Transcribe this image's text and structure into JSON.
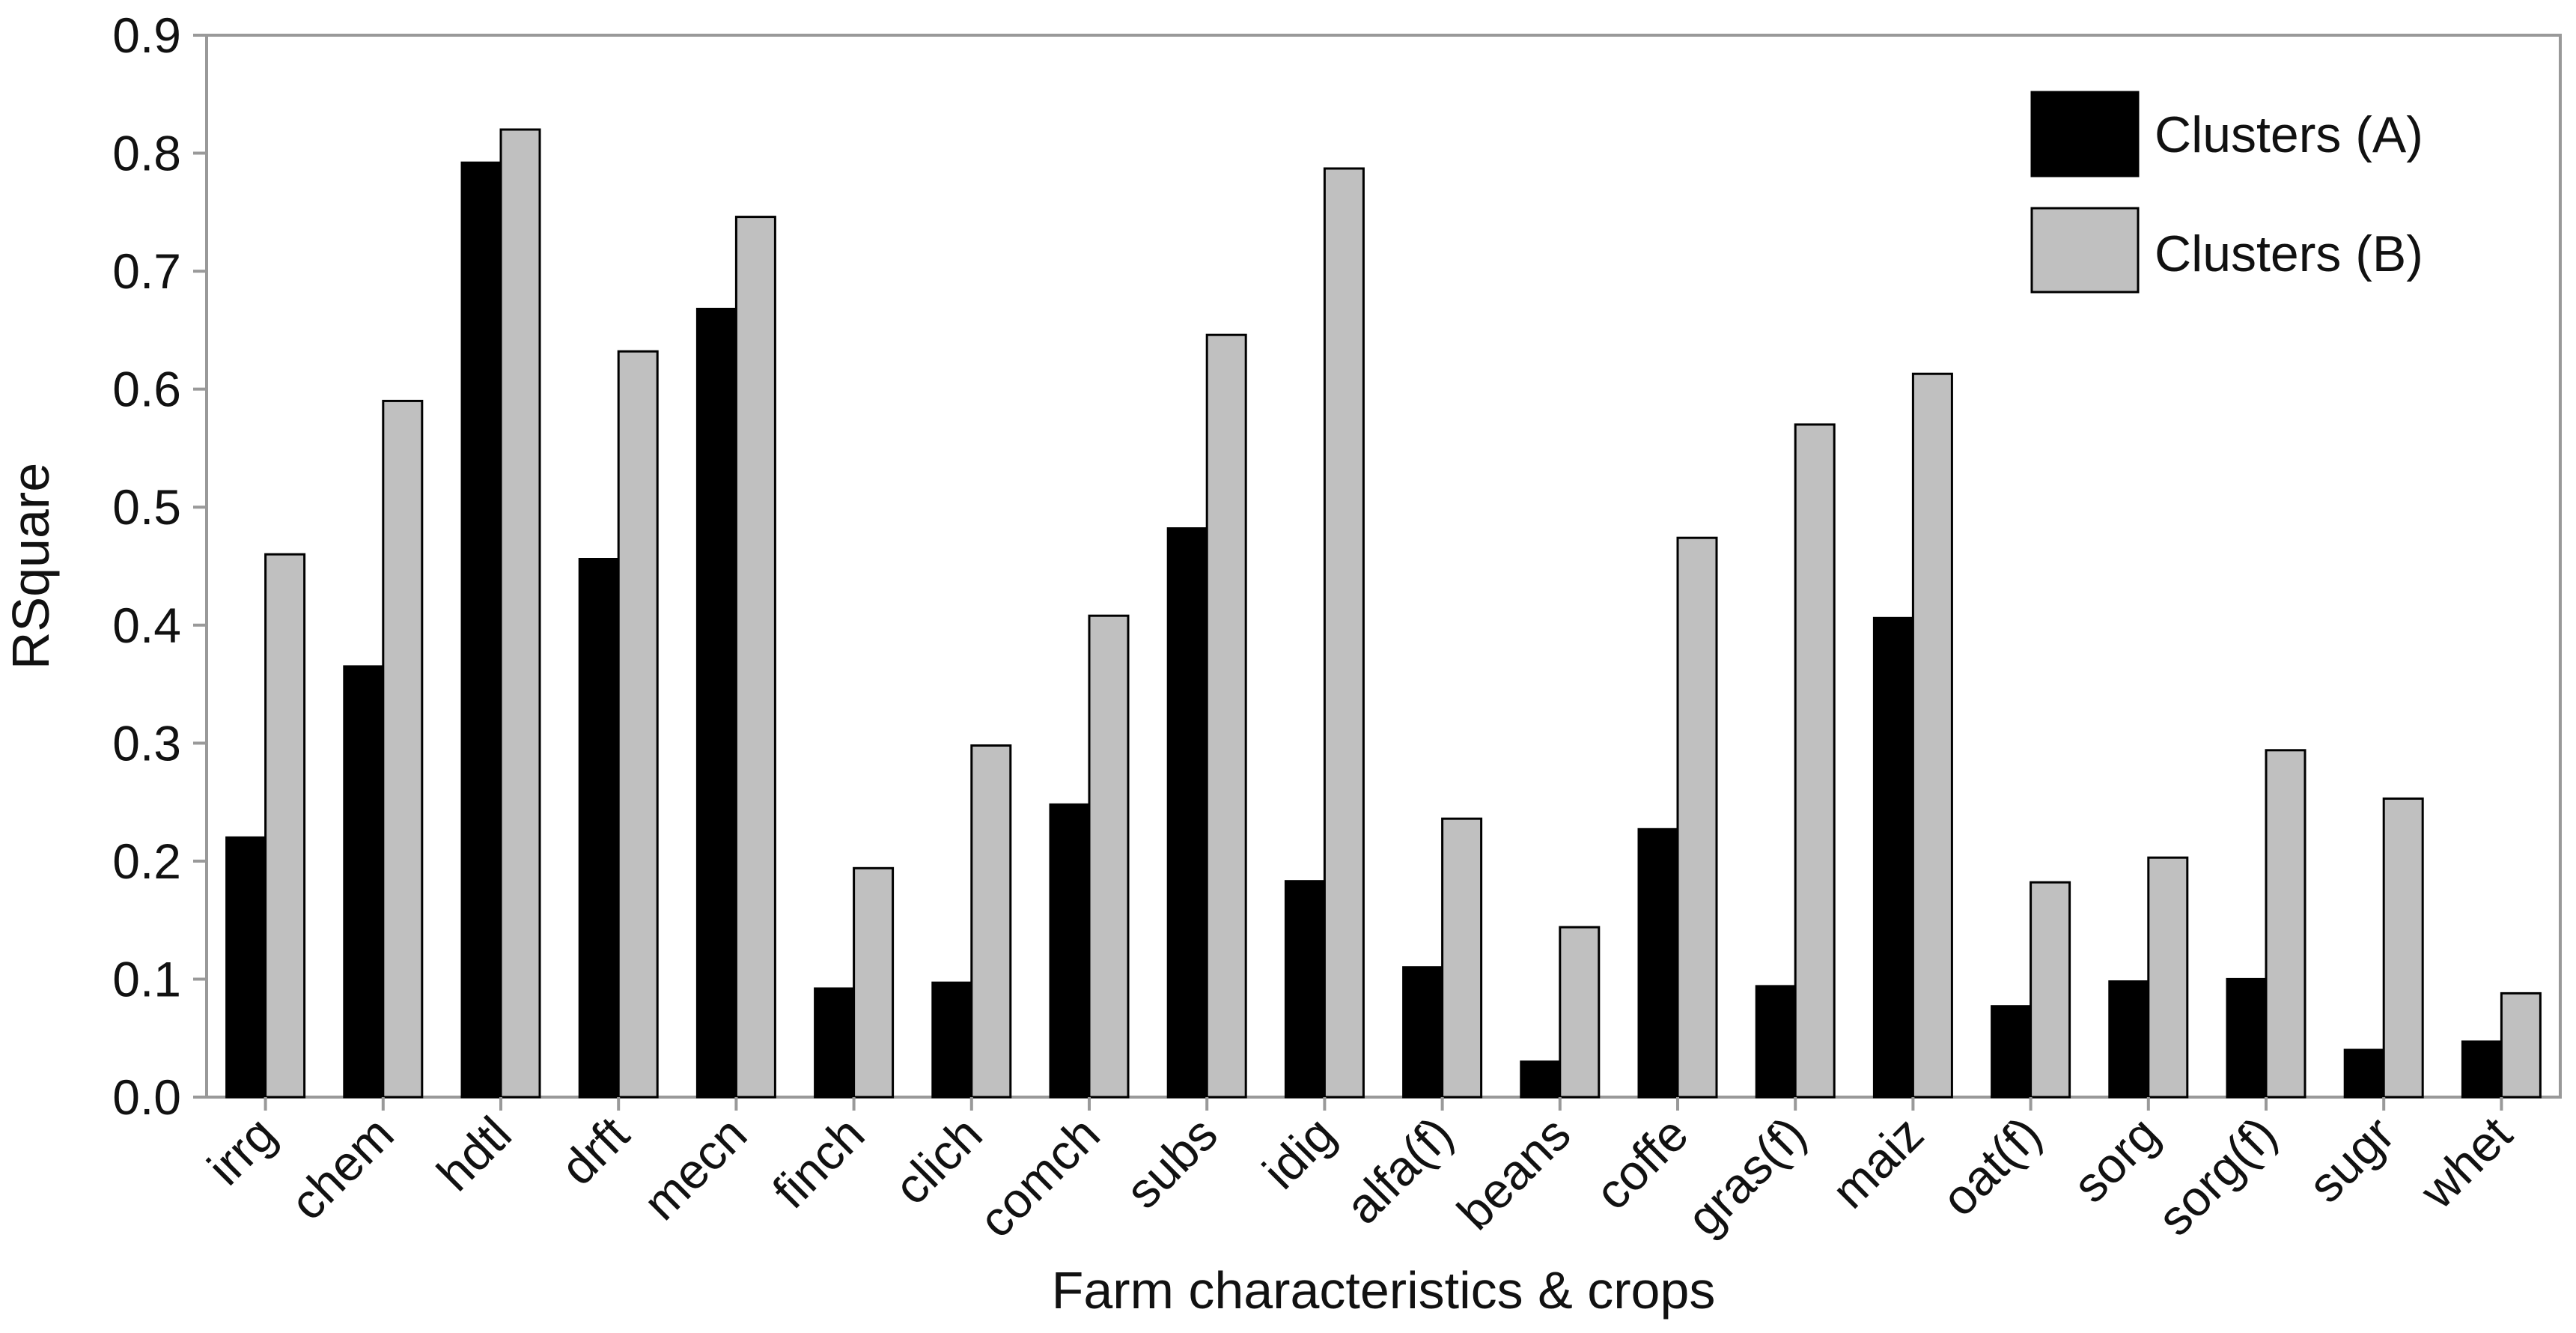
{
  "chart_data": {
    "type": "bar",
    "categories": [
      "irrg",
      "chem",
      "hdtl",
      "drft",
      "mecn",
      "finch",
      "clich",
      "comch",
      "subs",
      "idig",
      "alfa(f)",
      "beans",
      "coffe",
      "gras(f)",
      "maiz",
      "oat(f)",
      "sorg",
      "sorg(f)",
      "sugr",
      "whet"
    ],
    "series": [
      {
        "name": "Clusters (A)",
        "color": "#000000",
        "values": [
          0.22,
          0.365,
          0.792,
          0.456,
          0.668,
          0.092,
          0.097,
          0.248,
          0.482,
          0.183,
          0.11,
          0.03,
          0.227,
          0.094,
          0.406,
          0.077,
          0.098,
          0.1,
          0.04,
          0.047
        ]
      },
      {
        "name": "Clusters (B)",
        "color": "#c0c0c0",
        "values": [
          0.46,
          0.59,
          0.82,
          0.632,
          0.746,
          0.194,
          0.298,
          0.408,
          0.646,
          0.787,
          0.236,
          0.144,
          0.474,
          0.57,
          0.613,
          0.182,
          0.203,
          0.294,
          0.253,
          0.088
        ]
      }
    ],
    "title": "",
    "xlabel": "Farm characteristics & crops",
    "ylabel": "RSquare",
    "ylim": [
      0,
      0.9
    ],
    "yticks": [
      "0.0",
      "0.1",
      "0.2",
      "0.3",
      "0.4",
      "0.5",
      "0.6",
      "0.7",
      "0.8",
      "0.9"
    ],
    "grid": false,
    "legend_position": "top-right"
  }
}
